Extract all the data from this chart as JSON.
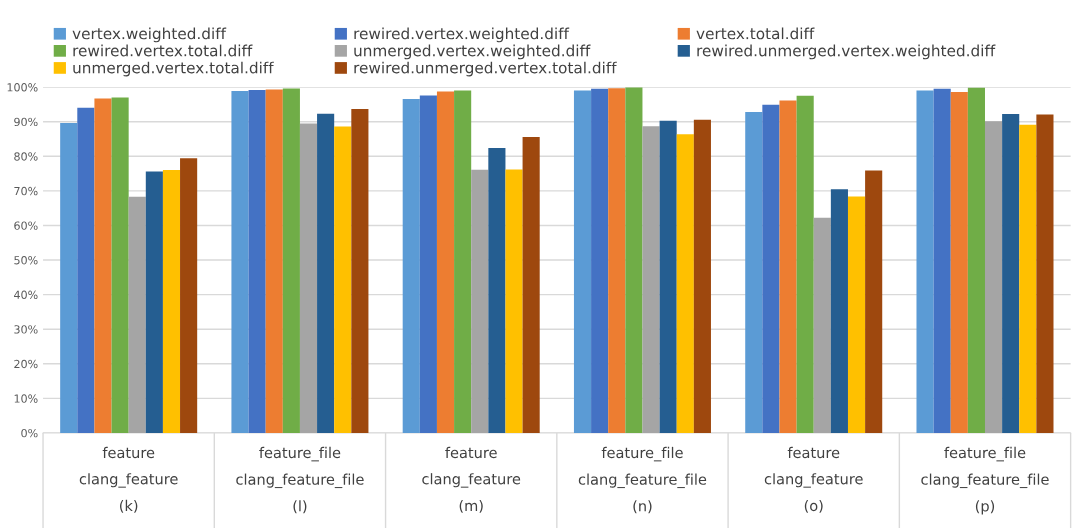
{
  "chart_data": {
    "type": "bar",
    "categories": [
      "feature\nclang_feature\n(k)",
      "feature_file\nclang_feature_file\n(l)",
      "feature\nclang_feature\n(m)",
      "feature_file\nclang_feature_file\n(n)",
      "feature\nclang_feature\n(o)",
      "feature_file\nclang_feature_file\n(p)"
    ],
    "series": [
      {
        "name": "vertex.weighted.diff",
        "color": "#5b9bd5",
        "values": [
          89.6,
          98.9,
          96.6,
          99.0,
          92.8,
          99.0
        ]
      },
      {
        "name": "rewired.vertex.weighted.diff",
        "color": "#4472c4",
        "values": [
          94.0,
          99.2,
          97.6,
          99.5,
          94.9,
          99.5
        ]
      },
      {
        "name": "vertex.total.diff",
        "color": "#ed7d31",
        "values": [
          96.7,
          99.3,
          98.7,
          99.7,
          96.1,
          98.6
        ]
      },
      {
        "name": "rewired.vertex.total.diff",
        "color": "#70ad47",
        "values": [
          97.0,
          99.6,
          99.0,
          99.9,
          97.5,
          99.8
        ]
      },
      {
        "name": "unmerged.vertex.weighted.diff",
        "color": "#a5a5a5",
        "values": [
          68.3,
          89.5,
          76.1,
          88.7,
          62.2,
          90.1
        ]
      },
      {
        "name": "rewired.unmerged.vertex.weighted.diff",
        "color": "#255e91",
        "values": [
          75.6,
          92.3,
          82.4,
          90.3,
          70.5,
          92.2
        ]
      },
      {
        "name": "unmerged.vertex.total.diff",
        "color": "#ffc000",
        "values": [
          76.0,
          88.6,
          76.2,
          86.4,
          68.4,
          89.1
        ]
      },
      {
        "name": "rewired.unmerged.vertex.total.diff",
        "color": "#9e480e",
        "values": [
          79.4,
          93.7,
          85.6,
          90.6,
          75.9,
          92.1
        ]
      }
    ],
    "ylim": [
      0,
      100
    ],
    "yticks": [
      {
        "value": 0,
        "label": "0%"
      },
      {
        "value": 10,
        "label": "10%"
      },
      {
        "value": 20,
        "label": "20%"
      },
      {
        "value": 30,
        "label": "30%"
      },
      {
        "value": 40,
        "label": "40%"
      },
      {
        "value": 50,
        "label": "50%"
      },
      {
        "value": 60,
        "label": "60%"
      },
      {
        "value": 70,
        "label": "70%"
      },
      {
        "value": 80,
        "label": "80%"
      },
      {
        "value": 90,
        "label": "90%"
      },
      {
        "value": 100,
        "label": "100%"
      }
    ],
    "grid": "y",
    "legend": "top"
  }
}
